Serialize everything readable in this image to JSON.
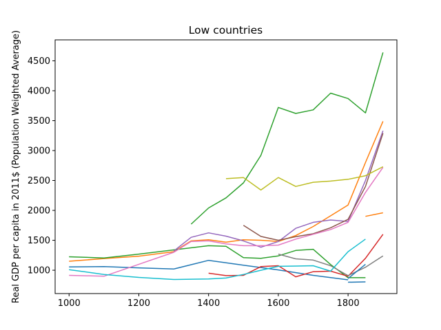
{
  "chart_data": {
    "type": "line",
    "title": "Low countries",
    "xlabel": "",
    "ylabel": "Real GDP per capita in 2011$ (Population Weighted Average)",
    "xlim": [
      960,
      1940
    ],
    "ylim": [
      610,
      4850
    ],
    "x_ticks": [
      1000,
      1200,
      1400,
      1600,
      1800
    ],
    "x_tick_labels": [
      "1000",
      "1200",
      "1400",
      "1600",
      "1800"
    ],
    "y_ticks": [
      1000,
      1500,
      2000,
      2500,
      3000,
      3500,
      4000,
      4500
    ],
    "y_tick_labels": [
      "1000",
      "1500",
      "2000",
      "2500",
      "3000",
      "3500",
      "4000",
      "4500"
    ],
    "grid": false,
    "legend": "none",
    "series": [
      {
        "color": "#1f77b4",
        "points": [
          [
            1000,
            1055
          ],
          [
            1100,
            1060
          ],
          [
            1200,
            1040
          ],
          [
            1300,
            1020
          ],
          [
            1400,
            1165
          ],
          [
            1500,
            1085
          ],
          [
            1600,
            1005
          ],
          [
            1700,
            915
          ],
          [
            1800,
            840
          ]
        ]
      },
      {
        "color": "#1f77b4",
        "points": [
          [
            1800,
            800
          ],
          [
            1850,
            805
          ]
        ]
      },
      {
        "color": "#ff7f0e",
        "points": [
          [
            1000,
            1150
          ],
          [
            1100,
            1195
          ],
          [
            1200,
            1235
          ],
          [
            1300,
            1310
          ],
          [
            1350,
            1490
          ],
          [
            1400,
            1510
          ],
          [
            1450,
            1470
          ],
          [
            1500,
            1510
          ],
          [
            1550,
            1500
          ],
          [
            1600,
            1480
          ],
          [
            1650,
            1580
          ],
          [
            1700,
            1730
          ],
          [
            1750,
            1910
          ],
          [
            1800,
            2090
          ],
          [
            1850,
            2800
          ],
          [
            1900,
            3490
          ]
        ]
      },
      {
        "color": "#ff7f0e",
        "points": [
          [
            1850,
            1900
          ],
          [
            1900,
            1960
          ]
        ]
      },
      {
        "color": "#2ca02c",
        "points": [
          [
            1000,
            1225
          ],
          [
            1100,
            1205
          ],
          [
            1200,
            1270
          ],
          [
            1300,
            1340
          ],
          [
            1400,
            1410
          ],
          [
            1450,
            1400
          ],
          [
            1500,
            1210
          ],
          [
            1550,
            1200
          ],
          [
            1600,
            1240
          ],
          [
            1650,
            1330
          ],
          [
            1700,
            1350
          ],
          [
            1750,
            1095
          ],
          [
            1800,
            875
          ],
          [
            1850,
            875
          ]
        ]
      },
      {
        "color": "#2ca02c",
        "points": [
          [
            1350,
            1770
          ],
          [
            1400,
            2040
          ],
          [
            1450,
            2210
          ],
          [
            1500,
            2460
          ],
          [
            1550,
            2920
          ],
          [
            1600,
            3720
          ],
          [
            1650,
            3620
          ],
          [
            1700,
            3680
          ],
          [
            1750,
            3960
          ],
          [
            1800,
            3870
          ],
          [
            1850,
            3630
          ],
          [
            1900,
            4640
          ]
        ]
      },
      {
        "color": "#d62728",
        "points": [
          [
            1400,
            950
          ],
          [
            1450,
            910
          ],
          [
            1500,
            915
          ],
          [
            1550,
            1060
          ],
          [
            1600,
            1075
          ],
          [
            1650,
            890
          ],
          [
            1700,
            975
          ],
          [
            1750,
            985
          ],
          [
            1800,
            900
          ],
          [
            1850,
            1200
          ],
          [
            1900,
            1600
          ]
        ]
      },
      {
        "color": "#9467bd",
        "points": [
          [
            1300,
            1320
          ],
          [
            1350,
            1550
          ],
          [
            1400,
            1625
          ],
          [
            1450,
            1570
          ],
          [
            1500,
            1490
          ],
          [
            1550,
            1385
          ],
          [
            1600,
            1480
          ],
          [
            1650,
            1700
          ],
          [
            1700,
            1800
          ],
          [
            1750,
            1840
          ],
          [
            1800,
            1815
          ],
          [
            1850,
            2500
          ],
          [
            1900,
            3330
          ]
        ]
      },
      {
        "color": "#8c564b",
        "points": [
          [
            1500,
            1750
          ],
          [
            1550,
            1565
          ],
          [
            1600,
            1500
          ],
          [
            1650,
            1560
          ],
          [
            1700,
            1610
          ],
          [
            1750,
            1710
          ],
          [
            1800,
            1850
          ],
          [
            1850,
            2400
          ],
          [
            1900,
            3290
          ]
        ]
      },
      {
        "color": "#e377c2",
        "points": [
          [
            1000,
            915
          ],
          [
            1100,
            900
          ],
          [
            1200,
            1100
          ],
          [
            1300,
            1300
          ],
          [
            1350,
            1480
          ],
          [
            1400,
            1490
          ],
          [
            1450,
            1440
          ],
          [
            1500,
            1410
          ],
          [
            1550,
            1410
          ],
          [
            1600,
            1420
          ],
          [
            1650,
            1520
          ],
          [
            1700,
            1600
          ],
          [
            1750,
            1680
          ],
          [
            1800,
            1800
          ],
          [
            1850,
            2300
          ],
          [
            1900,
            2720
          ]
        ]
      },
      {
        "color": "#7f7f7f",
        "points": [
          [
            1600,
            1270
          ],
          [
            1650,
            1190
          ],
          [
            1700,
            1170
          ],
          [
            1750,
            1075
          ],
          [
            1800,
            910
          ],
          [
            1850,
            1050
          ],
          [
            1900,
            1240
          ]
        ]
      },
      {
        "color": "#bcbd22",
        "points": [
          [
            1450,
            2530
          ],
          [
            1500,
            2550
          ],
          [
            1550,
            2340
          ],
          [
            1600,
            2550
          ],
          [
            1650,
            2400
          ],
          [
            1700,
            2470
          ],
          [
            1750,
            2490
          ],
          [
            1800,
            2520
          ],
          [
            1850,
            2580
          ],
          [
            1900,
            2730
          ]
        ]
      },
      {
        "color": "#17becf",
        "points": [
          [
            1000,
            1010
          ],
          [
            1100,
            930
          ],
          [
            1200,
            880
          ],
          [
            1300,
            845
          ],
          [
            1400,
            855
          ],
          [
            1450,
            870
          ],
          [
            1500,
            930
          ],
          [
            1550,
            1000
          ],
          [
            1600,
            1065
          ],
          [
            1650,
            1070
          ],
          [
            1700,
            1075
          ],
          [
            1750,
            985
          ],
          [
            1800,
            1310
          ],
          [
            1850,
            1520
          ]
        ]
      },
      {
        "color": "#1f77b4",
        "points": [
          [
            1800,
            860
          ],
          [
            1850,
            1100
          ]
        ]
      }
    ]
  }
}
